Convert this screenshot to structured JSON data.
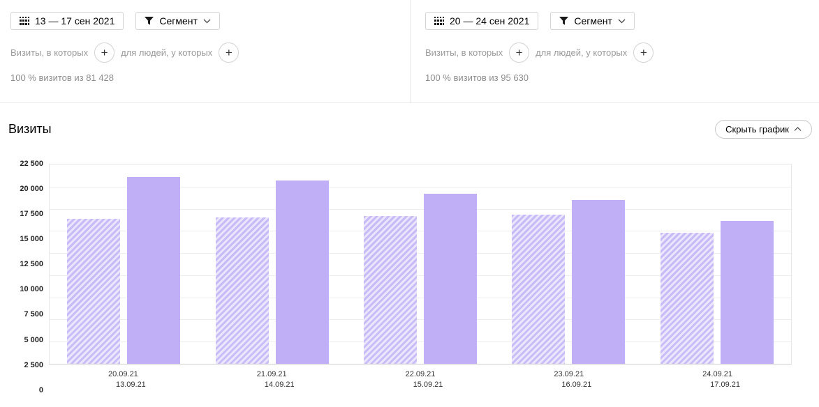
{
  "panels": [
    {
      "date_range": "13 — 17 сен 2021",
      "segment_label": "Сегмент",
      "filter_visits_label": "Визиты, в которых",
      "filter_people_label": "для людей, у которых",
      "plus_label": "+",
      "summary": "100 % визитов из 81 428"
    },
    {
      "date_range": "20 — 24 сен 2021",
      "segment_label": "Сегмент",
      "filter_visits_label": "Визиты, в которых",
      "filter_people_label": "для людей, у которых",
      "plus_label": "+",
      "summary": "100 % визитов из 95 630"
    }
  ],
  "section": {
    "title": "Визиты",
    "toggle_label": "Скрыть график"
  },
  "chart_data": {
    "type": "bar",
    "title": "Визиты",
    "grid": true,
    "ylim": [
      0,
      22500
    ],
    "y_tick_labels": [
      "22 500",
      "20 000",
      "17 500",
      "15 000",
      "12 500",
      "10 000",
      "7 500",
      "5 000",
      "2 500",
      "0"
    ],
    "categories": [
      {
        "line1": "20.09.21",
        "line2": "13.09.21"
      },
      {
        "line1": "21.09.21",
        "line2": "14.09.21"
      },
      {
        "line1": "22.09.21",
        "line2": "15.09.21"
      },
      {
        "line1": "23.09.21",
        "line2": "16.09.21"
      },
      {
        "line1": "24.09.21",
        "line2": "17.09.21"
      }
    ],
    "series": [
      {
        "name": "13 — 17 сен 2021",
        "style": "hatched",
        "values": [
          16400,
          16500,
          16700,
          16800,
          14800
        ]
      },
      {
        "name": "20 — 24 сен 2021",
        "style": "solid",
        "values": [
          21100,
          20700,
          19200,
          18500,
          16100
        ]
      }
    ],
    "colors": {
      "solid_bar": "#c0aef6",
      "hatch_stripe": "#c9baf8",
      "hatch_bg": "#ebe6fc",
      "gridline": "#ededed"
    }
  }
}
